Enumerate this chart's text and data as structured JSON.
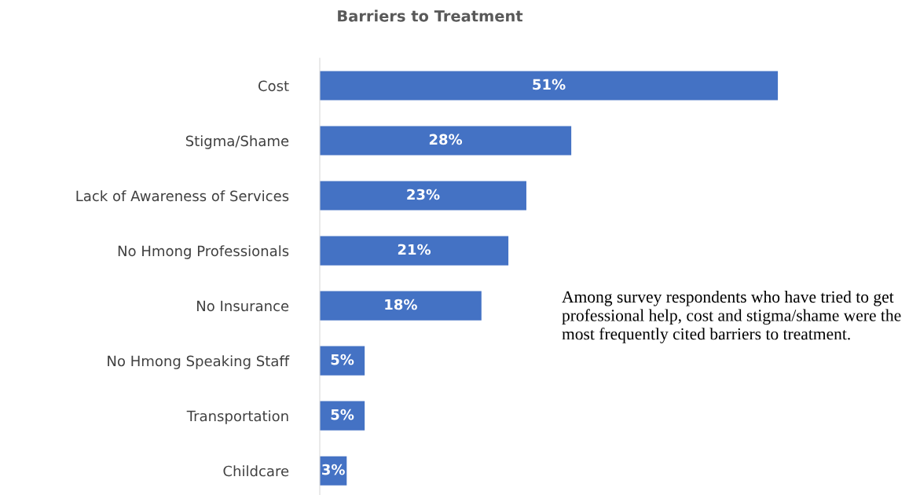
{
  "chart_data": {
    "type": "bar",
    "orientation": "horizontal",
    "title": "Barriers to Treatment",
    "categories": [
      "Cost",
      "Stigma/Shame",
      "Lack of Awareness of Services",
      "No Hmong Professionals",
      "No Insurance",
      "No Hmong Speaking Staff",
      "Transportation",
      "Childcare"
    ],
    "values": [
      51,
      28,
      23,
      21,
      18,
      5,
      5,
      3
    ],
    "value_labels": [
      "51%",
      "28%",
      "23%",
      "21%",
      "18%",
      "5%",
      "5%",
      "3%"
    ],
    "color": "#4472c4",
    "grid": false,
    "legend": false,
    "tick_labels": "y",
    "annotations": [
      "Among survey respondents who have tried to get professional help, cost and stigma/shame were the most frequently cited barriers to treatment."
    ]
  }
}
